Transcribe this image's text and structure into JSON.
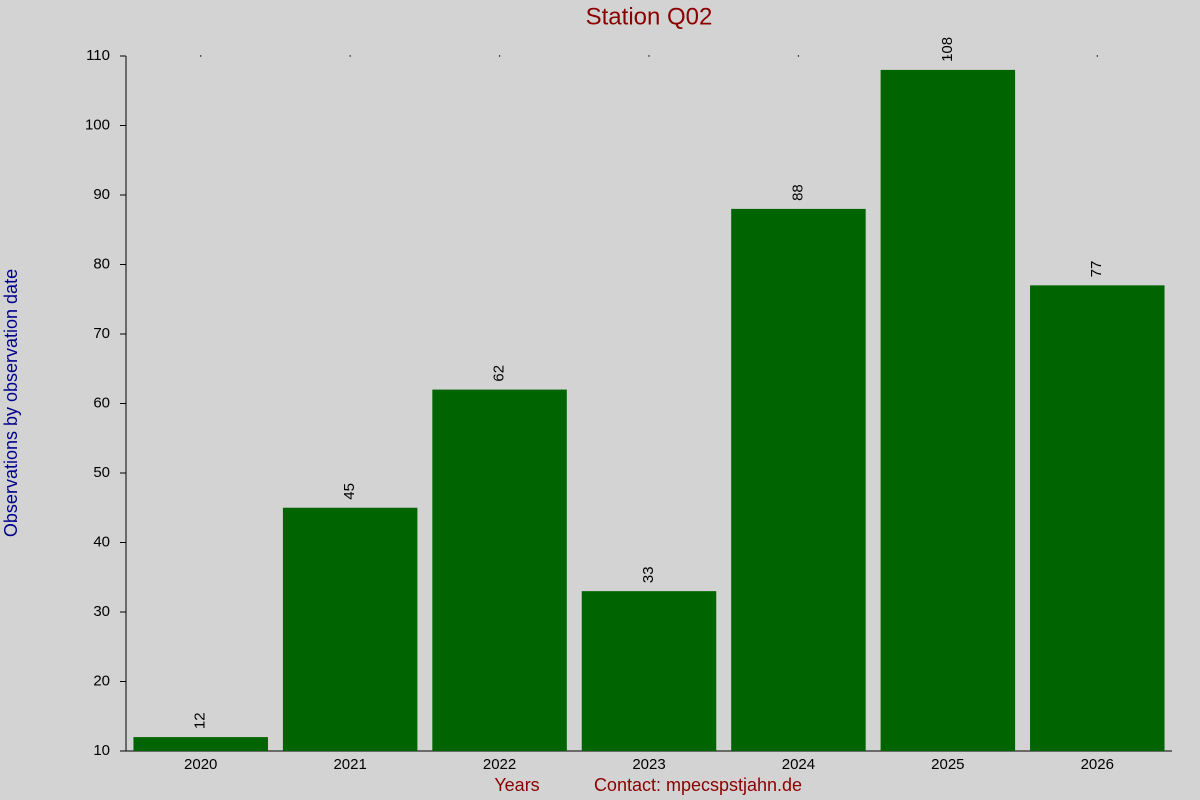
{
  "chart_data": {
    "type": "bar",
    "title": "Station Q02",
    "y_label": "Observations by observation date",
    "x_label": "Years",
    "contact": "Contact: mpecspstjahn.de",
    "categories": [
      "2020",
      "2021",
      "2022",
      "2023",
      "2024",
      "2025",
      "2026"
    ],
    "values": [
      12,
      45,
      62,
      33,
      88,
      108,
      77
    ],
    "color": "#006400",
    "ylim": [
      10,
      110
    ],
    "yticks": [
      10,
      20,
      30,
      40,
      50,
      60,
      70,
      80,
      90,
      100,
      110
    ]
  }
}
